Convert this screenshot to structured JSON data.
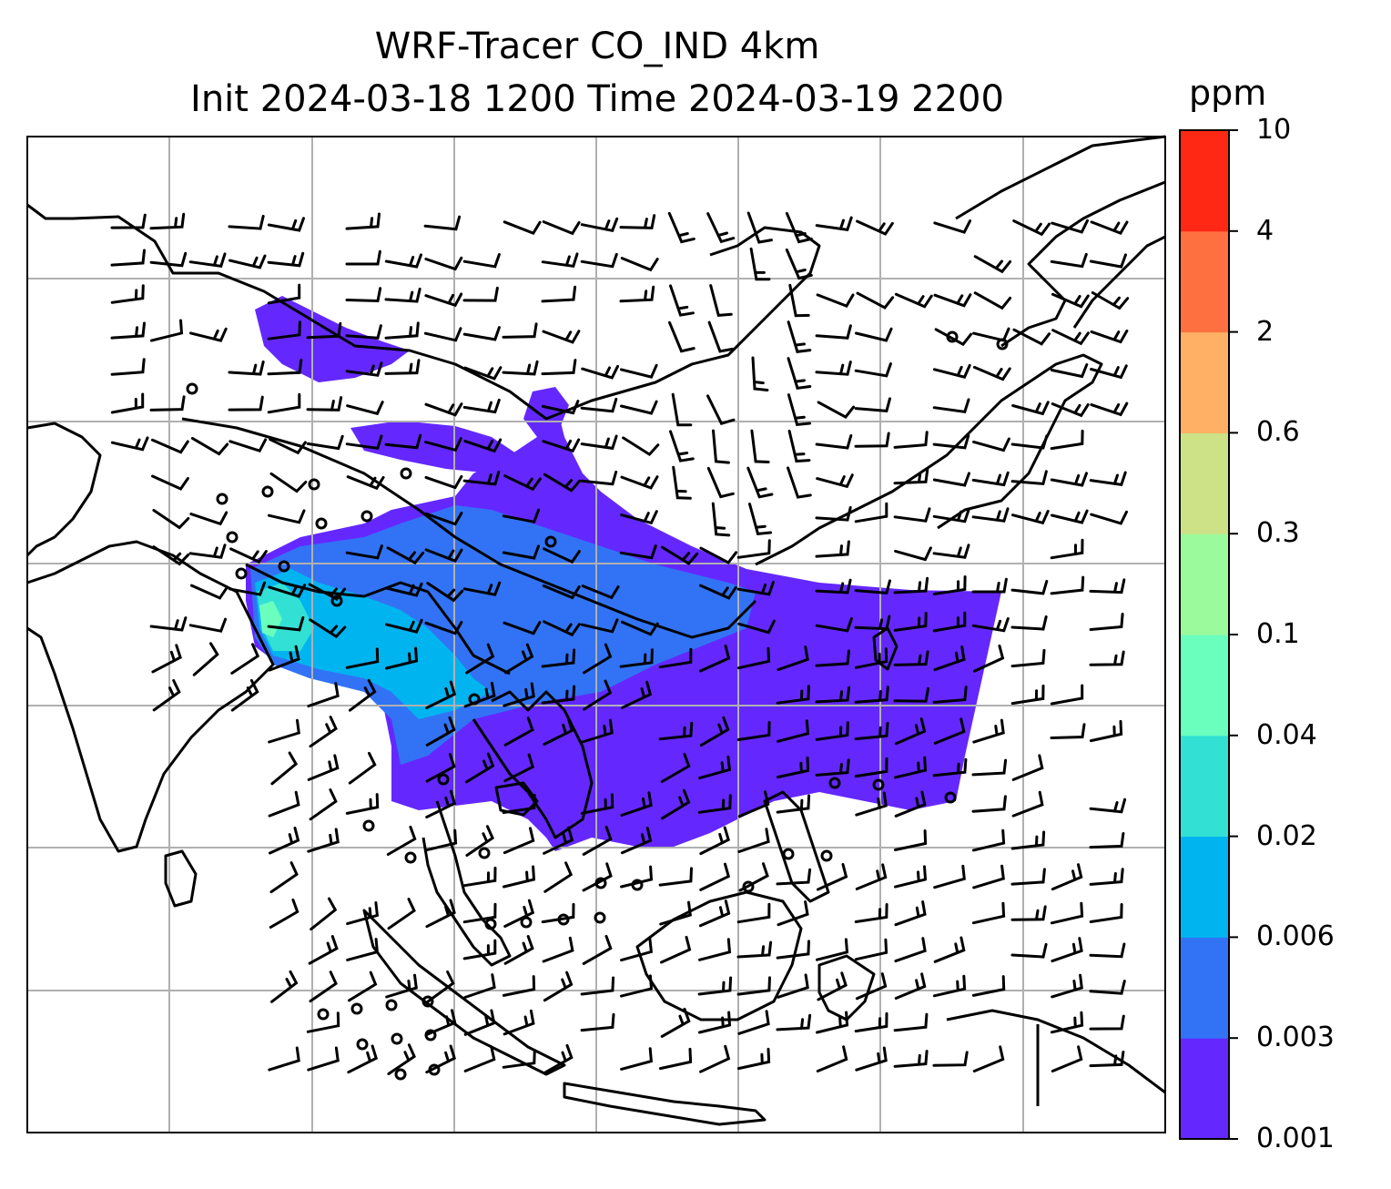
{
  "title": {
    "line1": "WRF-Tracer CO_IND 4km",
    "line2": "Init 2024-03-18 1200 Time 2024-03-19 2200"
  },
  "colorbar": {
    "units": "ppm",
    "tick_labels": [
      "0.001",
      "0.003",
      "0.006",
      "0.02",
      "0.04",
      "0.1",
      "0.3",
      "0.6",
      "2",
      "4",
      "10"
    ],
    "colors": [
      "#6428ff",
      "#3273f5",
      "#00b4f0",
      "#32e1d4",
      "#6bffbe",
      "#9bfa9b",
      "#cde187",
      "#ffb064",
      "#ff7040",
      "#ff2814"
    ]
  },
  "map": {
    "region": "South and Southeast Asia",
    "gridlines": true,
    "wind_barbs": true,
    "coastline_color": "#000000",
    "gridline_color": "#b0b0b0"
  }
}
